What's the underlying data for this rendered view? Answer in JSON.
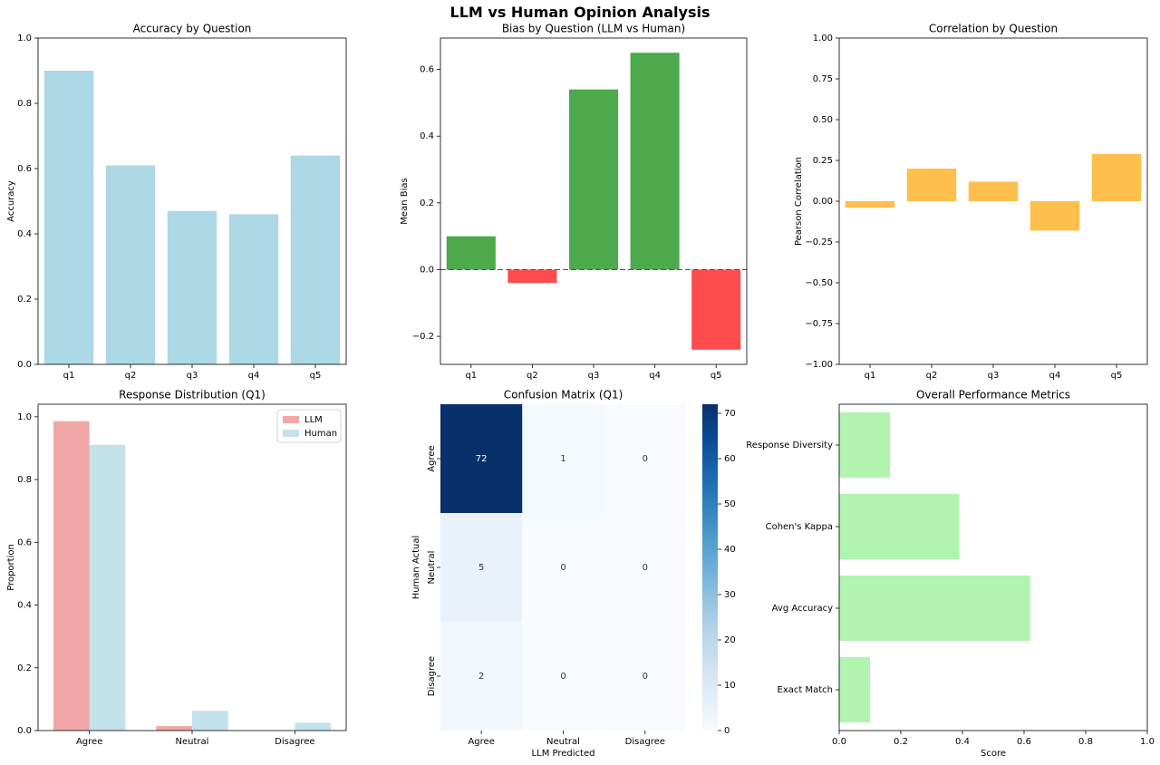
{
  "figure": {
    "title": "LLM vs Human Opinion Analysis"
  },
  "chart_data": [
    {
      "id": "accuracy",
      "type": "bar",
      "title": "Accuracy by Question",
      "xlabel": "",
      "ylabel": "Accuracy",
      "categories": [
        "q1",
        "q2",
        "q3",
        "q4",
        "q5"
      ],
      "values": [
        0.9,
        0.61,
        0.47,
        0.46,
        0.64
      ],
      "ylim": [
        0,
        1
      ],
      "yticks": [
        "0.0",
        "0.2",
        "0.4",
        "0.6",
        "0.8",
        "1.0"
      ],
      "color": "#add8e6",
      "grid": false
    },
    {
      "id": "bias",
      "type": "bar",
      "title": "Bias by Question (LLM vs Human)",
      "xlabel": "",
      "ylabel": "Mean Bias",
      "categories": [
        "q1",
        "q2",
        "q3",
        "q4",
        "q5"
      ],
      "values": [
        0.1,
        -0.04,
        0.54,
        0.65,
        -0.24
      ],
      "ylim": [
        -0.284,
        0.694
      ],
      "yticks": [
        "−0.2",
        "0.0",
        "0.2",
        "0.4",
        "0.6"
      ],
      "positive_color": "#4caa4c",
      "negative_color": "#ff4c4c",
      "reference_line": 0,
      "grid": false
    },
    {
      "id": "correlation",
      "type": "bar",
      "title": "Correlation by Question",
      "xlabel": "",
      "ylabel": "Pearson Correlation",
      "categories": [
        "q1",
        "q2",
        "q3",
        "q4",
        "q5"
      ],
      "values": [
        -0.04,
        0.2,
        0.12,
        -0.18,
        0.29
      ],
      "ylim": [
        -1,
        1
      ],
      "yticks": [
        "−1.00",
        "−0.75",
        "−0.50",
        "−0.25",
        "0.00",
        "0.25",
        "0.50",
        "0.75",
        "1.00"
      ],
      "color": "#ffbf4c",
      "grid": false
    },
    {
      "id": "distribution",
      "type": "bar",
      "title": "Response Distribution (Q1)",
      "xlabel": "",
      "ylabel": "Proportion",
      "categories": [
        "Agree",
        "Neutral",
        "Disagree"
      ],
      "series": [
        {
          "name": "LLM",
          "values": [
            0.986,
            0.014,
            0.0
          ],
          "color": "#f1a7a7"
        },
        {
          "name": "Human",
          "values": [
            0.911,
            0.063,
            0.025
          ],
          "color": "#c4e2ec"
        }
      ],
      "ylim": [
        0,
        1.04
      ],
      "yticks": [
        "0.0",
        "0.2",
        "0.4",
        "0.6",
        "0.8",
        "1.0"
      ],
      "legend": "top-right",
      "grid": false
    },
    {
      "id": "confusion",
      "type": "heatmap",
      "title": "Confusion Matrix (Q1)",
      "xlabel": "LLM Predicted",
      "ylabel": "Human Actual",
      "x_categories": [
        "Agree",
        "Neutral",
        "Disagree"
      ],
      "y_categories": [
        "Agree",
        "Neutral",
        "Disagree"
      ],
      "matrix": [
        [
          72,
          1,
          0
        ],
        [
          5,
          0,
          0
        ],
        [
          2,
          0,
          0
        ]
      ],
      "colorbar_ticks": [
        "0",
        "10",
        "20",
        "30",
        "40",
        "50",
        "60",
        "70"
      ],
      "vmin": 0,
      "vmax": 72,
      "colormap": "Blues"
    },
    {
      "id": "overall",
      "type": "bar",
      "orientation": "horizontal",
      "title": "Overall Performance Metrics",
      "xlabel": "Score",
      "ylabel": "",
      "categories": [
        "Exact Match",
        "Avg Accuracy",
        "Cohen's Kappa",
        "Response Diversity"
      ],
      "values": [
        0.1,
        0.62,
        0.39,
        0.165
      ],
      "xlim": [
        0,
        1
      ],
      "xticks": [
        "0.0",
        "0.2",
        "0.4",
        "0.6",
        "0.8",
        "1.0"
      ],
      "color": "#b0f4b0",
      "grid": false
    }
  ]
}
